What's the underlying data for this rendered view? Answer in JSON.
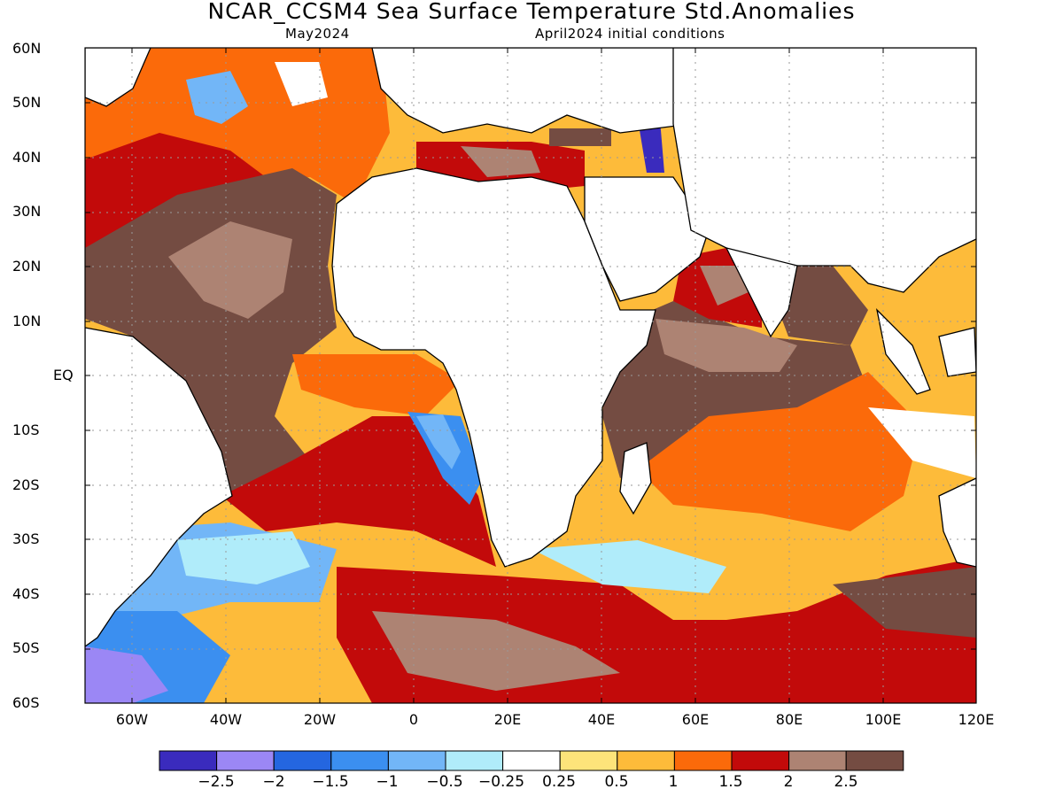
{
  "title": "NCAR_CCSM4 Sea Surface Temperature Std.Anomalies",
  "subtitle_left": "May2024",
  "subtitle_right": "April2024 initial conditions",
  "lat_labels": [
    "60N",
    "50N",
    "40N",
    "30N",
    "20N",
    "10N",
    "EQ",
    "10S",
    "20S",
    "30S",
    "40S",
    "50S",
    "60S"
  ],
  "lon_labels": [
    "60W",
    "40W",
    "20W",
    "0",
    "20E",
    "40E",
    "60E",
    "80E",
    "100E",
    "120E"
  ],
  "colorbar": {
    "colors": [
      "#3a2bbd",
      "#9b87f5",
      "#2466e0",
      "#3b8ff0",
      "#72b6f7",
      "#b0ecfa",
      "#ffffff",
      "#fde47a",
      "#fdbb3a",
      "#fb6a0a",
      "#c20a0a",
      "#ad8373",
      "#744c42"
    ],
    "labels": [
      "−2.5",
      "−2",
      "−1.5",
      "−1",
      "−0.5",
      "−0.25",
      "0.25",
      "0.5",
      "1",
      "1.5",
      "2",
      "2.5"
    ]
  },
  "colors": {
    "land": "#ffffff",
    "grid": "#9a9a9a",
    "coast": "#000000"
  }
}
